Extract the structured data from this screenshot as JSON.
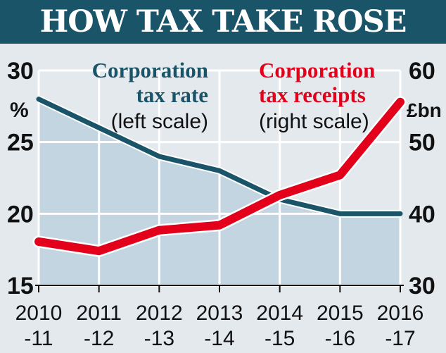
{
  "chart_data": {
    "type": "line",
    "title": "HOW TAX TAKE ROSE",
    "categories": [
      [
        "2010",
        "-11"
      ],
      [
        "2011",
        "-12"
      ],
      [
        "2012",
        "-13"
      ],
      [
        "2013",
        "-14"
      ],
      [
        "2014",
        "-15"
      ],
      [
        "2015",
        "-16"
      ],
      [
        "2016",
        "-17"
      ]
    ],
    "series": [
      {
        "name": "Corporation tax rate",
        "note": "(left scale)",
        "axis": "left",
        "color": "#1a5468",
        "fill": "#c3d5e1",
        "values": [
          28,
          26,
          24,
          23,
          21,
          20,
          20
        ]
      },
      {
        "name": "Corporation tax receipts",
        "note": "(right scale)",
        "axis": "right",
        "color": "#e3001b",
        "values": [
          36.1,
          34.8,
          37.7,
          38.4,
          42.6,
          45.4,
          55.6
        ]
      }
    ],
    "left_axis": {
      "unit": "%",
      "ylim": [
        15,
        30
      ],
      "ticks": [
        "15",
        "20",
        "25",
        "30"
      ]
    },
    "right_axis": {
      "unit": "£bn",
      "ylim": [
        30,
        60
      ],
      "ticks": [
        "30",
        "40",
        "50",
        "60"
      ]
    },
    "grid": true
  }
}
